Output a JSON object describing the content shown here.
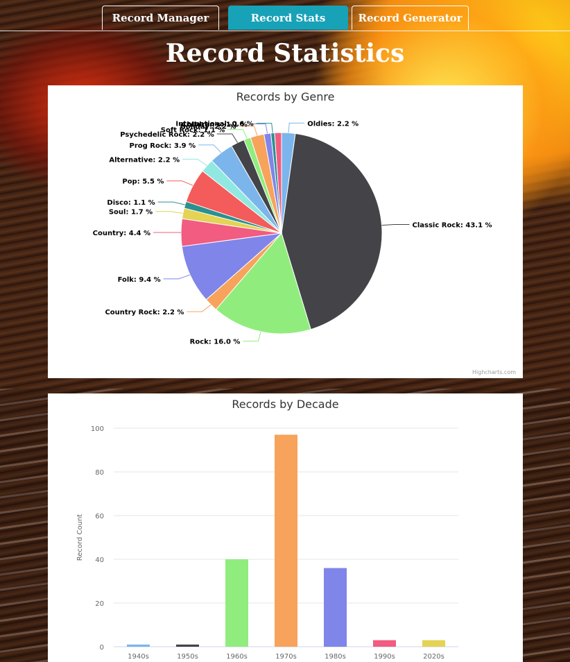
{
  "nav": {
    "tabs": [
      {
        "label": "Record Manager",
        "active": false
      },
      {
        "label": "Record Stats",
        "active": true
      },
      {
        "label": "Record Generator",
        "active": false
      }
    ]
  },
  "page": {
    "title": "Record Statistics"
  },
  "credits": "Highcharts.com",
  "chart_data": [
    {
      "type": "pie",
      "title": "Records by Genre",
      "slices": [
        {
          "name": "Oldies",
          "value": 2.2,
          "label": "Oldies: 2.2 %",
          "color": "#7cb5ec"
        },
        {
          "name": "Classic Rock",
          "value": 43.1,
          "label": "Classic Rock: 43.1 %",
          "color": "#434348"
        },
        {
          "name": "Rock",
          "value": 16.0,
          "label": "Rock: 16.0 %",
          "color": "#90ed7d"
        },
        {
          "name": "Country Rock",
          "value": 2.2,
          "label": "Country Rock: 2.2 %",
          "color": "#f7a35c"
        },
        {
          "name": "Folk",
          "value": 9.4,
          "label": "Folk: 9.4 %",
          "color": "#8085e9"
        },
        {
          "name": "Country",
          "value": 4.4,
          "label": "Country: 4.4 %",
          "color": "#f15c80"
        },
        {
          "name": "Soul",
          "value": 1.7,
          "label": "Soul: 1.7 %",
          "color": "#e4d354"
        },
        {
          "name": "Disco",
          "value": 1.1,
          "label": "Disco: 1.1 %",
          "color": "#2b908f"
        },
        {
          "name": "Pop",
          "value": 5.5,
          "label": "Pop: 5.5 %",
          "color": "#f45b5b"
        },
        {
          "name": "Alternative",
          "value": 2.2,
          "label": "Alternative: 2.2 %",
          "color": "#91e8e1"
        },
        {
          "name": "Prog Rock",
          "value": 3.9,
          "label": "Prog Rock: 3.9 %",
          "color": "#7cb5ec"
        },
        {
          "name": "Psychedelic Rock",
          "value": 2.2,
          "label": "Psychedelic Rock: 2.2 %",
          "color": "#434348"
        },
        {
          "name": "Soft Rock",
          "value": 1.1,
          "label": "Soft Rock: 1.1 %",
          "color": "#90ed7d"
        },
        {
          "name": "Holiday",
          "value": 2.2,
          "label": "Holiday: 2.2 %",
          "color": "#f7a35c"
        },
        {
          "name": "Children's",
          "value": 1.1,
          "label": "Children's: 1.1 %",
          "color": "#8085e9"
        },
        {
          "name": "International",
          "value": 0.6,
          "label": "International: 0.6 %",
          "color": "#2b908f"
        },
        {
          "name": "(unlabeled)",
          "value": 1.1,
          "label": "",
          "color": "#f15c80"
        }
      ]
    },
    {
      "type": "bar",
      "title": "Records by Decade",
      "ylabel": "Record Count",
      "ylim": [
        0,
        100
      ],
      "yticks": [
        0,
        20,
        40,
        60,
        80,
        100
      ],
      "grid": true,
      "categories": [
        "1940s",
        "1950s",
        "1960s",
        "1970s",
        "1980s",
        "1990s",
        "2020s"
      ],
      "values": [
        1,
        1,
        40,
        97,
        36,
        3,
        3
      ],
      "colors": [
        "#7cb5ec",
        "#434348",
        "#90ed7d",
        "#f7a35c",
        "#8085e9",
        "#f15c80",
        "#e4d354"
      ]
    }
  ]
}
